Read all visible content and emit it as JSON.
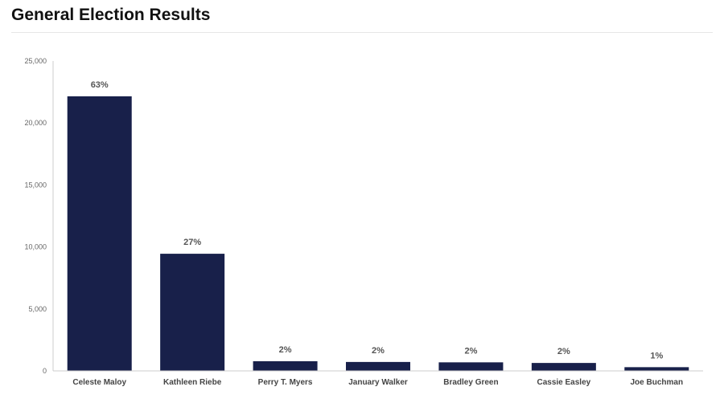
{
  "header": {
    "title": "General Election Results"
  },
  "colors": {
    "bar": "#18204a",
    "axis": "#cccccc",
    "title_rule": "#e6e6e6"
  },
  "chart_data": {
    "type": "bar",
    "title": "",
    "xlabel": "",
    "ylabel": "",
    "ylim": [
      0,
      25000
    ],
    "yticks": [
      0,
      5000,
      10000,
      15000,
      20000,
      25000
    ],
    "ytick_labels": [
      "0",
      "5,000",
      "10,000",
      "15,000",
      "20,000",
      "25,000"
    ],
    "grid": false,
    "legend": "none",
    "categories": [
      "Celeste Maloy",
      "Kathleen Riebe",
      "Perry T. Myers",
      "January Walker",
      "Bradley Green",
      "Cassie Easley",
      "Joe Buchman"
    ],
    "values": [
      22150,
      9450,
      780,
      720,
      690,
      640,
      300
    ],
    "data_labels": [
      "63%",
      "27%",
      "2%",
      "2%",
      "2%",
      "2%",
      "1%"
    ]
  }
}
